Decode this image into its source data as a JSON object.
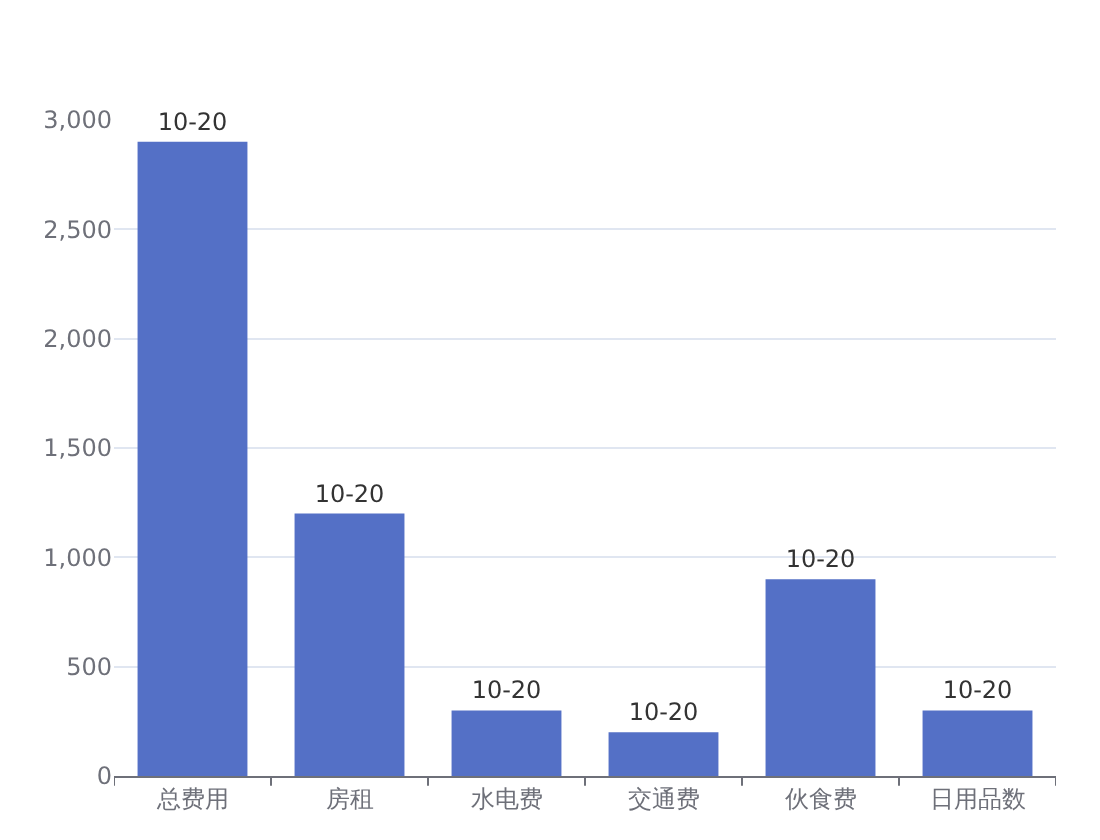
{
  "chart_data": {
    "type": "bar",
    "categories": [
      "总费用",
      "房租",
      "水电费",
      "交通费",
      "伙食费",
      "日用品数"
    ],
    "values": [
      2900,
      1200,
      300,
      200,
      900,
      300
    ],
    "value_labels": [
      "10-20",
      "10-20",
      "10-20",
      "10-20",
      "10-20",
      "10-20"
    ],
    "color": "#5470c6",
    "ylim": [
      0,
      3000
    ],
    "yticks": [
      0,
      {
        "value": 500,
        "label": "500"
      },
      {
        "value": 1000,
        "label": "1,000"
      },
      {
        "value": 1500,
        "label": "1,500"
      },
      {
        "value": 2000,
        "label": "2,000"
      },
      {
        "value": 2500,
        "label": "2,500"
      },
      {
        "value": 3000,
        "label": "3,000"
      }
    ],
    "grid": "y",
    "legend": false
  }
}
